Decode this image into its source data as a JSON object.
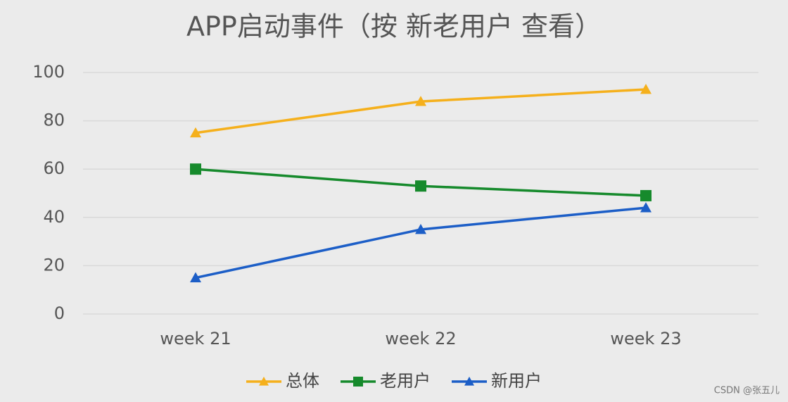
{
  "chart_data": {
    "type": "line",
    "title": "APP启动事件（按 新老用户 查看）",
    "categories": [
      "week 21",
      "week 22",
      "week 23"
    ],
    "series": [
      {
        "name": "总体",
        "color": "#f5b01c",
        "marker": "triangle",
        "values": [
          75,
          88,
          93
        ]
      },
      {
        "name": "老用户",
        "color": "#168a2c",
        "marker": "square",
        "values": [
          60,
          53,
          49
        ]
      },
      {
        "name": "新用户",
        "color": "#1c5ec7",
        "marker": "triangle",
        "values": [
          15,
          35,
          44
        ]
      }
    ],
    "ylim": [
      0,
      100
    ],
    "yticks": [
      0,
      20,
      40,
      60,
      80,
      100
    ],
    "grid": true,
    "legend": "bottom"
  },
  "watermark": "CSDN @张五儿"
}
